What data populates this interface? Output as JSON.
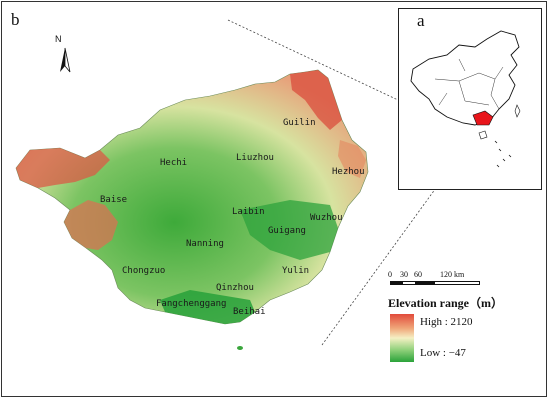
{
  "panels": {
    "main_label": "b",
    "inset_label": "a"
  },
  "north_arrow": {
    "label": "N",
    "icon": "north-arrow-icon"
  },
  "cities": [
    {
      "name": "Guilin"
    },
    {
      "name": "Hechi"
    },
    {
      "name": "Liuzhou"
    },
    {
      "name": "Hezhou"
    },
    {
      "name": "Baise"
    },
    {
      "name": "Laibin"
    },
    {
      "name": "Wuzhou"
    },
    {
      "name": "Guigang"
    },
    {
      "name": "Nanning"
    },
    {
      "name": "Chongzuo"
    },
    {
      "name": "Yulin"
    },
    {
      "name": "Qinzhou"
    },
    {
      "name": "Fangchenggang"
    },
    {
      "name": "Beihai"
    }
  ],
  "scale_bar": {
    "ticks": [
      "0",
      "30",
      "60",
      "120 km"
    ]
  },
  "legend": {
    "title": "Elevation range（m）",
    "high": "High : 2120",
    "low": "Low : −47",
    "colors": {
      "high": "#e14b3b",
      "mid": "#f5f0c4",
      "low": "#2aa23a"
    }
  }
}
